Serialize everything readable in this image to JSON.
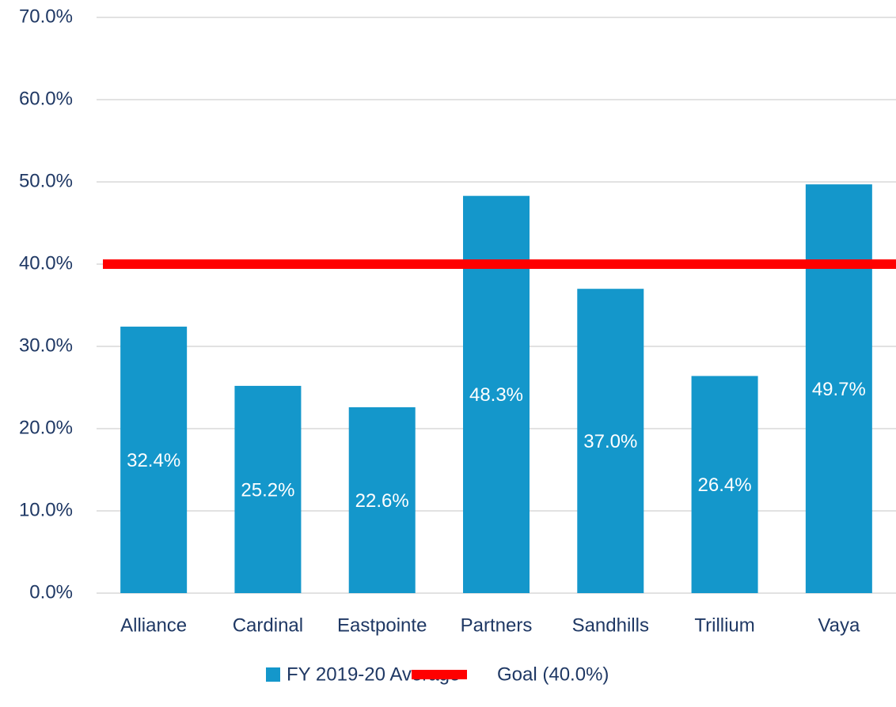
{
  "chart_data": {
    "type": "bar",
    "categories": [
      "Alliance",
      "Cardinal",
      "Eastpointe",
      "Partners",
      "Sandhills",
      "Trillium",
      "Vaya"
    ],
    "series": [
      {
        "name": "FY 2019-20 Average",
        "color": "#1497cb",
        "values": [
          32.4,
          25.2,
          22.6,
          48.3,
          37.0,
          26.4,
          49.7
        ],
        "value_labels": [
          "32.4%",
          "25.2%",
          "22.6%",
          "48.3%",
          "37.0%",
          "26.4%",
          "49.7%"
        ]
      }
    ],
    "goal": {
      "name": "Goal (40.0%)",
      "value": 40,
      "color": "#ff0000"
    },
    "ylim": [
      0,
      70
    ],
    "yticks": [
      {
        "value": 0,
        "label": "0.0%"
      },
      {
        "value": 10,
        "label": "10.0%"
      },
      {
        "value": 20,
        "label": "20.0%"
      },
      {
        "value": 30,
        "label": "30.0%"
      },
      {
        "value": 40,
        "label": "40.0%"
      },
      {
        "value": 50,
        "label": "50.0%"
      },
      {
        "value": 60,
        "label": "60.0%"
      },
      {
        "value": 70,
        "label": "70.0%"
      }
    ],
    "grid": true,
    "legend": "bottom"
  }
}
